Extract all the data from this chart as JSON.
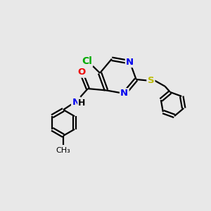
{
  "background_color": "#e8e8e8",
  "bond_color": "#000000",
  "figsize": [
    3.0,
    3.0
  ],
  "dpi": 100,
  "atom_colors": {
    "N": "#0000ee",
    "O": "#ee0000",
    "S": "#bbbb00",
    "Cl": "#00aa00",
    "C": "#000000",
    "H": "#000000"
  },
  "font_size": 9.5,
  "lw": 1.6,
  "off": 0.075
}
